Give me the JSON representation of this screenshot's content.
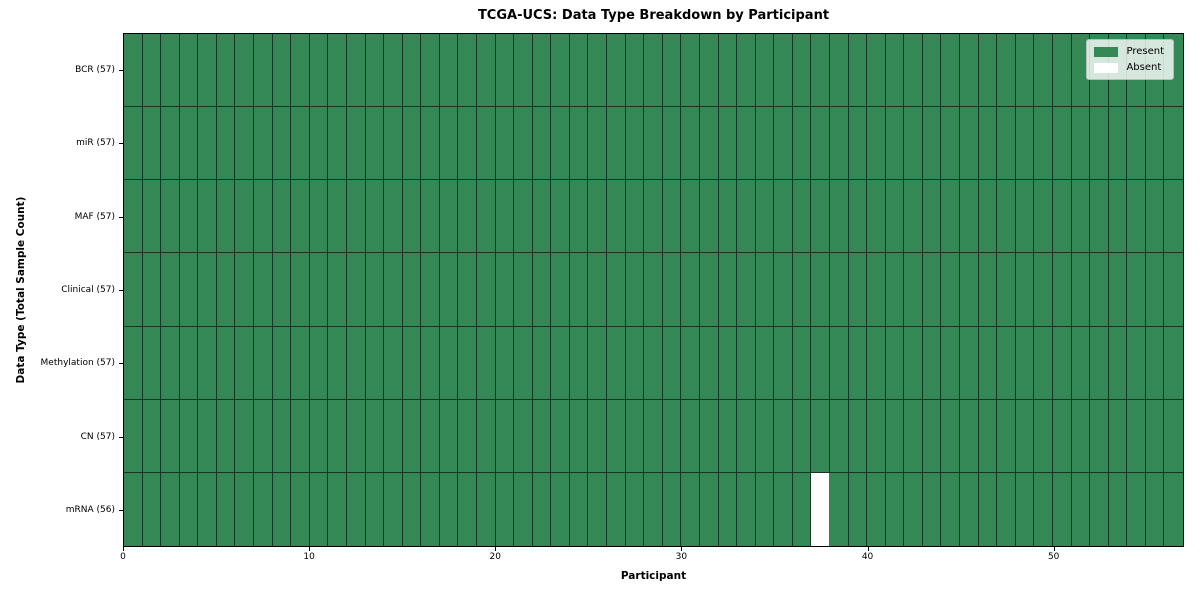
{
  "chart_data": {
    "type": "heatmap",
    "title": "TCGA-UCS: Data Type Breakdown by Participant",
    "xlabel": "Participant",
    "ylabel": "Data Type (Total Sample Count)",
    "x_ticks": [
      0,
      10,
      20,
      30,
      40,
      50
    ],
    "x_range": [
      0,
      57
    ],
    "n_participants": 57,
    "rows": [
      {
        "label": "BCR (57)",
        "data_type": "BCR",
        "count": 57,
        "absent_participants": []
      },
      {
        "label": "miR (57)",
        "data_type": "miR",
        "count": 57,
        "absent_participants": []
      },
      {
        "label": "MAF (57)",
        "data_type": "MAF",
        "count": 57,
        "absent_participants": []
      },
      {
        "label": "Clinical (57)",
        "data_type": "Clinical",
        "count": 57,
        "absent_participants": []
      },
      {
        "label": "Methylation (57)",
        "data_type": "Methylation",
        "count": 57,
        "absent_participants": []
      },
      {
        "label": "CN (57)",
        "data_type": "CN",
        "count": 57,
        "absent_participants": []
      },
      {
        "label": "mRNA (56)",
        "data_type": "mRNA",
        "count": 56,
        "absent_participants": [
          37
        ]
      }
    ],
    "legend": [
      {
        "label": "Present",
        "color": "#348856"
      },
      {
        "label": "Absent",
        "color": "#ffffff"
      }
    ],
    "colors": {
      "present": "#348856",
      "absent": "#ffffff",
      "grid_line": "rgba(0,0,0,0.6)",
      "axis": "#000000"
    },
    "legend_position": "upper right",
    "grid": true
  }
}
